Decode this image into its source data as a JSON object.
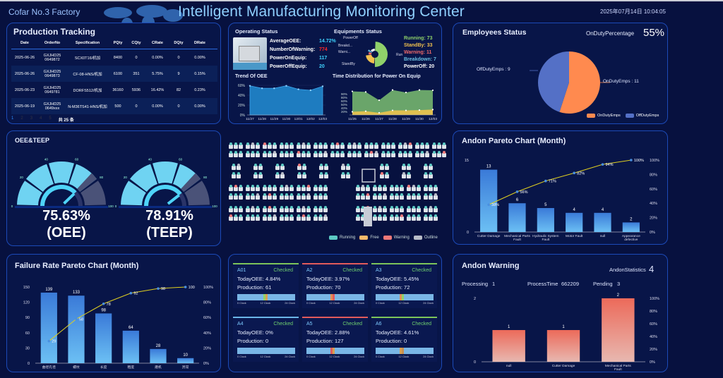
{
  "header": {
    "factory": "Cofar No.3 Factory",
    "title": "Intelligent Manufacturing Monitoring Center",
    "datetime": "2025年07月14日 10:04:05"
  },
  "production": {
    "title": "Production Tracking",
    "columns": [
      "Date",
      "OrderNo",
      "Specification",
      "PQty",
      "CQty",
      "CRate",
      "DQty",
      "DRate"
    ],
    "rows": [
      [
        "2025-06-26",
        "GXJHD25 0649872",
        "SCX0T16/机加",
        "8400",
        "0",
        "0.00%",
        "0",
        "0.00%"
      ],
      [
        "2025-06-26",
        "GXJHD25 0649873",
        "CF-08-HNS/机加",
        "6100",
        "351",
        "5.75%",
        "9",
        "0.15%"
      ],
      [
        "2025-06-23",
        "GXJHD25 0649781",
        "DORFS512/机加",
        "36160",
        "5936",
        "16.42%",
        "82",
        "0.23%"
      ],
      [
        "2025-06-19",
        "GXJHD25 0649xxx",
        "N-M36TS41-HNS/机加",
        "500",
        "0",
        "0.00%",
        "0",
        "0.00%"
      ]
    ],
    "pages": [
      "1",
      "2",
      "3",
      "4",
      "5"
    ],
    "total": "共 25 条"
  },
  "operating": {
    "title": "Operating Status",
    "stats": [
      {
        "label": "AverageOEE:",
        "value": "14.72%",
        "color": "#3fd3ff"
      },
      {
        "label": "NumberOfWarning:",
        "value": "774",
        "color": "#ff2a2a"
      },
      {
        "label": "PowerOnEquip:",
        "value": "117",
        "color": "#3fd3ff"
      },
      {
        "label": "PowerOffEquip:",
        "value": "20",
        "color": "#3fd3ff"
      }
    ]
  },
  "equipments": {
    "title": "Equipments Status",
    "donut_labels": [
      "PowerOff",
      "Breakd...",
      "Warni...",
      "StandBy",
      "Run"
    ],
    "legend": [
      {
        "label": "Running:",
        "value": "73",
        "color": "#8fd16a"
      },
      {
        "label": "StandBy:",
        "value": "33",
        "color": "#f2c14e"
      },
      {
        "label": "Warning:",
        "value": "11",
        "color": "#f06a6a"
      },
      {
        "label": "Breakdown:",
        "value": "7",
        "color": "#6bbfe0"
      },
      {
        "label": "PowerOff:",
        "value": "20",
        "color": "#ffffff"
      }
    ]
  },
  "employees": {
    "title": "Employees Status",
    "pct_label": "OnDutyPercentage",
    "pct_value": "55%",
    "on_label": "OnDutyEmps : 11",
    "off_label": "OffDutyEmps : 9",
    "legend_on": "OnDutyEmps",
    "legend_off": "OffDutyEmps"
  },
  "oee_teep": {
    "title": "OEE&TEEP",
    "oee_value": "75.63%",
    "oee_label": "(OEE)",
    "teep_value": "78.91%",
    "teep_label": "(TEEP)",
    "ticks": [
      "0",
      "20",
      "40",
      "60",
      "80",
      "100"
    ]
  },
  "machine_map": {
    "legend": [
      "Running",
      "Free",
      "Warning",
      "Outline"
    ]
  },
  "device_cards": [
    {
      "name": "A01",
      "status": "Checked",
      "oee": "TodayOEE:  4.84%",
      "prod": "Production:  61",
      "top": "#7cc45a"
    },
    {
      "name": "A2",
      "status": "Checked",
      "oee": "TodayOEE:  3.97%",
      "prod": "Production:  70",
      "top": "#e25b5b"
    },
    {
      "name": "A3",
      "status": "Checked",
      "oee": "TodayOEE:  5.45%",
      "prod": "Production:  72",
      "top": "#7cc45a"
    },
    {
      "name": "A4",
      "status": "Checked",
      "oee": "TodayOEE:  0%",
      "prod": "Production:  0",
      "top": "#6bb6e8"
    },
    {
      "name": "A5",
      "status": "Checked",
      "oee": "TodayOEE:  2.88%",
      "prod": "Production:  127",
      "top": "#e25b5b"
    },
    {
      "name": "A6",
      "status": "Checked",
      "oee": "TodayOEE:  4.61%",
      "prod": "Production:  0",
      "top": "#7cc45a"
    }
  ],
  "device_axis": [
    "0 Clock",
    "12 Clock",
    "24 Clock"
  ],
  "andon_warning": {
    "title": "Andon Warning",
    "stat_label": "AndonStatistics",
    "stat_value": "4",
    "processing_label": "Processing",
    "processing_value": "1",
    "ptime_label": "ProcessTime",
    "ptime_value": "662209",
    "pending_label": "Pending",
    "pending_value": "3"
  },
  "chart_data": [
    {
      "id": "trend_oee",
      "type": "area",
      "title": "Trend Of OEE",
      "categories": [
        "11/27",
        "11/28",
        "11/29",
        "11/30",
        "12/01",
        "12/02",
        "12/03"
      ],
      "values": [
        59,
        54,
        54,
        59,
        52,
        50,
        58
      ],
      "yticks": [
        "0%",
        "20%",
        "40%",
        "60%"
      ],
      "ylim": [
        0,
        60
      ]
    },
    {
      "id": "time_dist",
      "type": "area",
      "title": "Time Distribution for Power On Equip",
      "categories": [
        "11/25",
        "11/26",
        "11/27",
        "11/28",
        "11/29",
        "11/30",
        "12/03"
      ],
      "series": [
        {
          "name": "upper",
          "values": [
            88,
            86,
            55,
            93,
            84,
            93,
            92
          ],
          "color": "#6aa56a"
        },
        {
          "name": "lower",
          "values": [
            12,
            14,
            8,
            17,
            17,
            18,
            20
          ],
          "color": "#e0c050"
        }
      ],
      "yticks": [
        "20%",
        "40%",
        "50%",
        "60%",
        "80%",
        "90%"
      ],
      "ylim": [
        0,
        100
      ]
    },
    {
      "id": "equip_donut",
      "type": "pie",
      "labels": [
        "Running",
        "StandBy",
        "Warning",
        "Breakdown",
        "PowerOff"
      ],
      "values": [
        73,
        33,
        11,
        7,
        20
      ],
      "colors": [
        "#8fd16a",
        "#f2c14e",
        "#f06a6a",
        "#6bbfe0",
        "#ffffff"
      ]
    },
    {
      "id": "employees_pie",
      "type": "pie",
      "labels": [
        "OnDutyEmps",
        "OffDutyEmps"
      ],
      "values": [
        11,
        9
      ],
      "colors": [
        "#ff8a4f",
        "#5470c6"
      ]
    },
    {
      "id": "andon_pareto",
      "type": "bar",
      "title": "Andon Pareto Chart (Month)",
      "categories": [
        "Cutter Damage",
        "Mechanical Parts Fault",
        "Hydraulic System Fault",
        "Motor Fault",
        "null",
        "Appearance defective"
      ],
      "values": [
        13,
        6,
        5,
        4,
        4,
        2
      ],
      "cumulative": [
        38,
        56,
        71,
        82,
        94,
        100
      ],
      "cumulative_labels": [
        "38%",
        "56%",
        "71%",
        "82%",
        "94%",
        "100%"
      ],
      "ylim": [
        0,
        15
      ],
      "yticks": [
        "0",
        "15"
      ],
      "y2ticks": [
        "0%",
        "20%",
        "40%",
        "60%",
        "80%",
        "100%"
      ]
    },
    {
      "id": "failure_pareto",
      "type": "bar",
      "title": "Failure Rate Pareto Chart (Month)",
      "categories": [
        "曲径孔径",
        "螺纹",
        "长度",
        "粗度",
        "磨机",
        "异常"
      ],
      "values": [
        139,
        133,
        98,
        64,
        28,
        10
      ],
      "cumulative": [
        29,
        58,
        78,
        92,
        98,
        100
      ],
      "cumulative_labels": [
        "29",
        "58",
        "78",
        "92",
        "98",
        "100"
      ],
      "ylim": [
        0,
        150
      ],
      "yticks": [
        "0",
        "30",
        "60",
        "90",
        "120",
        "150"
      ],
      "y2ticks": [
        "0%",
        "20%",
        "40%",
        "60%",
        "80%",
        "100%"
      ]
    },
    {
      "id": "andon_warning_chart",
      "type": "bar",
      "categories": [
        "null",
        "Cutter Damage",
        "Mechanical Parts Fault"
      ],
      "values": [
        1,
        1,
        2
      ],
      "ylim": [
        0,
        2
      ],
      "yticks": [
        "0",
        "2"
      ],
      "y2ticks": [
        "0%",
        "20%",
        "40%",
        "60%",
        "80%",
        "100%"
      ]
    },
    {
      "id": "gauges",
      "type": "gauge",
      "values": [
        75.63,
        78.91
      ],
      "range": [
        0,
        100
      ]
    }
  ]
}
